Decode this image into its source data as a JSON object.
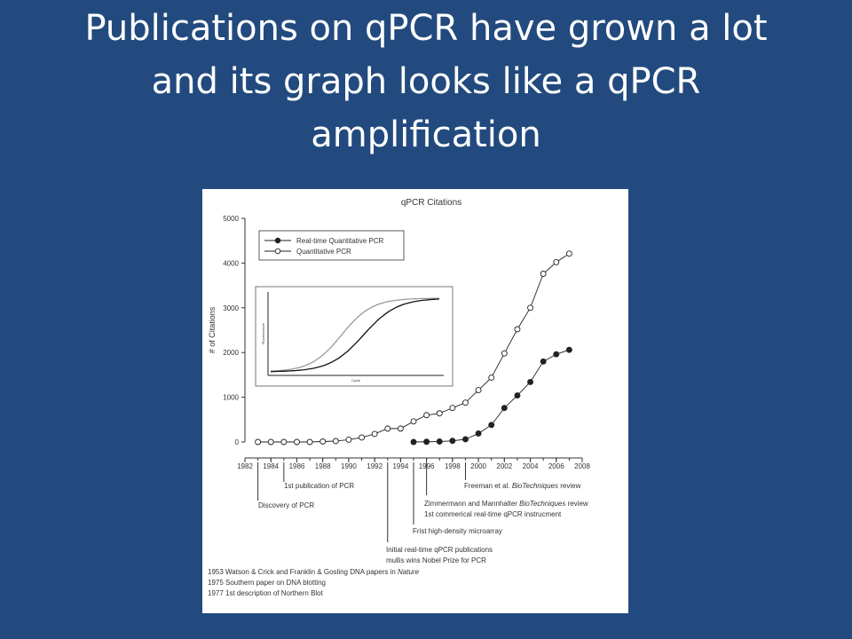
{
  "slide": {
    "title_lines": [
      "Publications on qPCR have grown a lot",
      "and its graph looks like a qPCR",
      "amplification"
    ]
  },
  "chart_data": {
    "type": "line",
    "title": "qPCR Citations",
    "ylabel": "# of Citations",
    "xlabel": "",
    "xlim": [
      1982,
      2008
    ],
    "ylim": [
      0,
      5000
    ],
    "x_ticks": [
      1982,
      1984,
      1986,
      1988,
      1990,
      1992,
      1994,
      1996,
      1998,
      2000,
      2002,
      2004,
      2006,
      2008
    ],
    "y_ticks": [
      0,
      1000,
      2000,
      3000,
      4000,
      5000
    ],
    "grid": false,
    "legend_position": "top-left",
    "colors": {
      "axis": "#333333",
      "series": "#222222",
      "background": "#ffffff"
    },
    "series": [
      {
        "name": "Real-time Quantitative PCR",
        "marker": "filled-circle",
        "x": [
          1995,
          1996,
          1997,
          1998,
          1999,
          2000,
          2001,
          2002,
          2003,
          2004,
          2005,
          2006,
          2007
        ],
        "y": [
          0,
          5,
          10,
          25,
          60,
          190,
          380,
          760,
          1040,
          1340,
          1800,
          1960,
          2060
        ]
      },
      {
        "name": "Quantitative PCR",
        "marker": "open-circle",
        "x": [
          1983,
          1984,
          1985,
          1986,
          1987,
          1988,
          1989,
          1990,
          1991,
          1992,
          1993,
          1994,
          1995,
          1996,
          1997,
          1998,
          1999,
          2000,
          2001,
          2002,
          2003,
          2004,
          2005,
          2006,
          2007
        ],
        "y": [
          0,
          0,
          0,
          0,
          0,
          10,
          20,
          50,
          100,
          180,
          300,
          300,
          460,
          600,
          640,
          760,
          880,
          1160,
          1440,
          1980,
          2520,
          3000,
          3760,
          4020,
          4210
        ]
      }
    ],
    "inset": {
      "ylabel": "Fluorescence",
      "xlabel": "Cycle",
      "curves": [
        {
          "name": "earlier curve",
          "color": "#999999",
          "midpoint": 0.42,
          "steepness": 11
        },
        {
          "name": "later curve",
          "color": "#111111",
          "midpoint": 0.55,
          "steepness": 10
        }
      ]
    },
    "timeline": [
      {
        "label": "1st publication of PCR",
        "year": 1985,
        "italic": "",
        "suffix": ""
      },
      {
        "label": "Discovery of PCR",
        "year": 1983,
        "italic": "",
        "suffix": ""
      },
      {
        "label": "Freeman et al. ",
        "year": 1999,
        "italic": "BioTechniques",
        "suffix": " review"
      },
      {
        "label": "Zimmermann and Mannhalter ",
        "year": 1996,
        "italic": "BioTechniques",
        "suffix": " review"
      },
      {
        "label": "1st commerical real-time qPCR instrucment",
        "year": 1996,
        "italic": "",
        "suffix": ""
      },
      {
        "label": "Frist high-density microarray",
        "year": 1995,
        "italic": "",
        "suffix": ""
      },
      {
        "label": "Initial real-time qPCR publications",
        "year": 1993,
        "italic": "",
        "suffix": ""
      },
      {
        "label": "mullis wins Nobel Prize for PCR",
        "year": 1993,
        "italic": "",
        "suffix": ""
      }
    ],
    "footnotes": [
      {
        "text": "1953 Watson & Crick and Franklin & Gosling DNA papers in ",
        "italic": "Nature"
      },
      {
        "text": "1975 Southern paper on DNA blotting",
        "italic": ""
      },
      {
        "text": "1977 1st description of Northern Blot",
        "italic": ""
      }
    ]
  }
}
